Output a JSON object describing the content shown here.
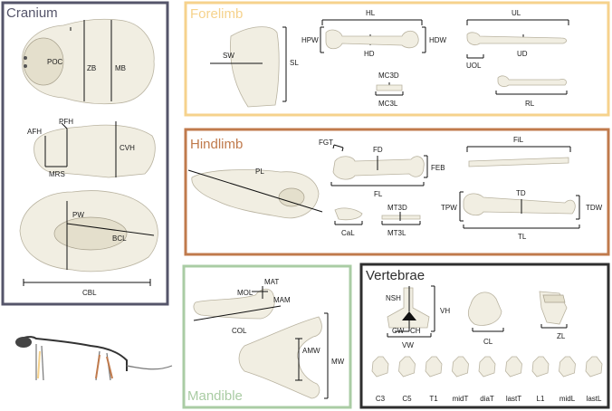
{
  "colors": {
    "cranium": "#55556a",
    "forelimb": "#f6d28c",
    "hindlimb": "#c07a4c",
    "mandible": "#aacca4",
    "vertebrae": "#2e2e2e"
  },
  "panels": {
    "cranium": {
      "title": "Cranium",
      "labels": {
        "poc": "POC",
        "zb": "ZB",
        "mb": "MB",
        "pfh": "PFH",
        "afh": "AFH",
        "mrs": "MRS",
        "cvh": "CVH",
        "pw": "PW",
        "bcl": "BCL",
        "cbl": "CBL"
      }
    },
    "forelimb": {
      "title": "Forelimb",
      "labels": {
        "sw": "SW",
        "sl": "SL",
        "hl": "HL",
        "hpw": "HPW",
        "hdw": "HDW",
        "hd": "HD",
        "ul": "UL",
        "uol": "UOL",
        "ud": "UD",
        "mc3d": "MC3D",
        "mc3l": "MC3L",
        "rl": "RL"
      }
    },
    "hindlimb": {
      "title": "Hindlimb",
      "labels": {
        "pl": "PL",
        "fgt": "FGT",
        "fd": "FD",
        "feb": "FEB",
        "fl": "FL",
        "fil": "FiL",
        "tpw": "TPW",
        "td": "TD",
        "tdw": "TDW",
        "tl": "TL",
        "cal": "CaL",
        "mt3d": "MT3D",
        "mt3l": "MT3L"
      }
    },
    "mandible": {
      "title": "Mandible",
      "labels": {
        "mat": "MAT",
        "mol": "MOL",
        "mam": "MAM",
        "col": "COL",
        "amw": "AMW",
        "mw": "MW"
      }
    },
    "vertebrae": {
      "title": "Vertebrae",
      "labels": {
        "nsh": "NSH",
        "vh": "VH",
        "cw": "CW",
        "ch": "CH",
        "vw": "VW",
        "cl": "CL",
        "zl": "ZL"
      },
      "series": [
        "C3",
        "C5",
        "T1",
        "midT",
        "diaT",
        "lastT",
        "L1",
        "midL",
        "lastL"
      ]
    }
  }
}
